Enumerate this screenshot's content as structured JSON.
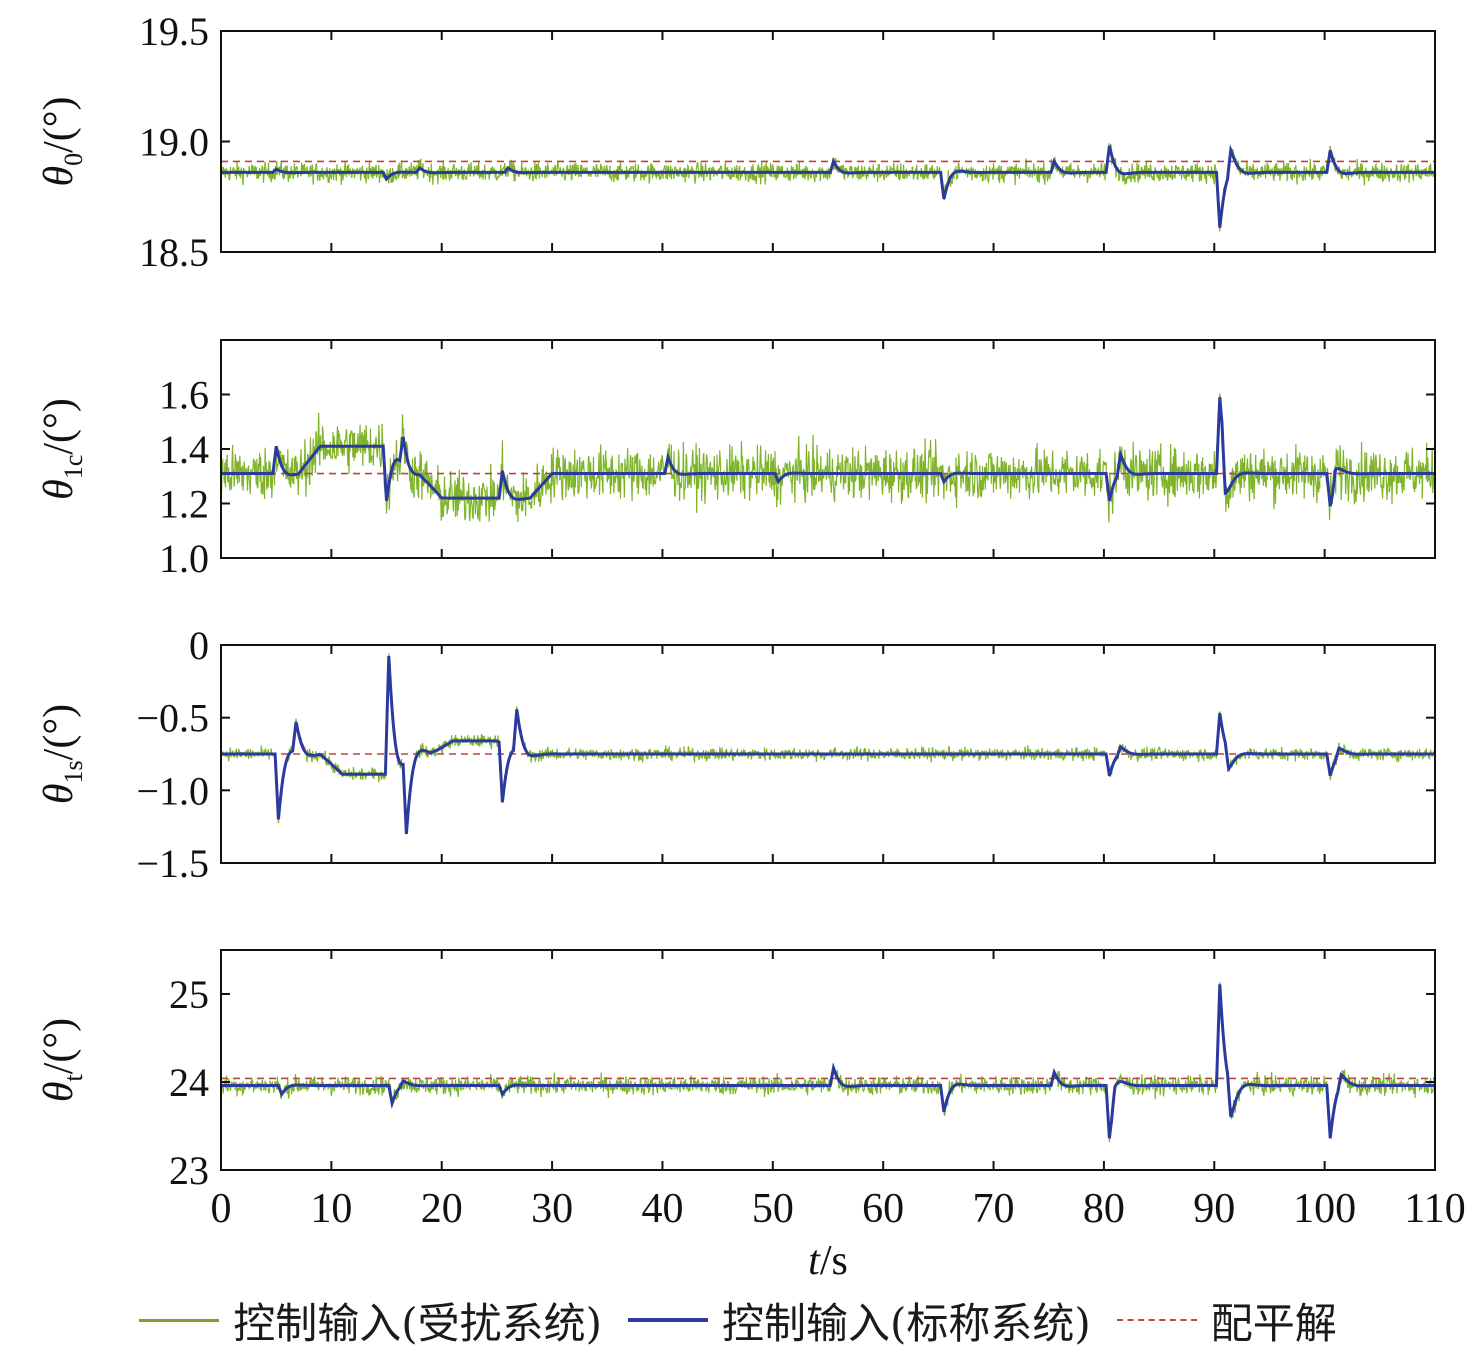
{
  "chart_data": {
    "type": "line",
    "xlabel": "t/s",
    "x_ticks": [
      "0",
      "10",
      "20",
      "30",
      "40",
      "50",
      "60",
      "70",
      "80",
      "90",
      "100",
      "110"
    ],
    "xlim": [
      0,
      110
    ],
    "legend": {
      "placement": "bottom",
      "entries": [
        "控制输入(受扰系统)",
        "控制输入(标称系统)",
        "配平解"
      ]
    },
    "colors": {
      "disturbed": "#7cc42a",
      "disturbed_legend": "#8a9a30",
      "nominal": "#2b3a9e",
      "trim": "#c0453f"
    },
    "grid": false,
    "panels": [
      {
        "ylabel_symbol": "θ",
        "ylabel_sub": "0",
        "ylabel_unit": "/(°)",
        "ylim": [
          18.5,
          19.5
        ],
        "y_ticks": [
          "19.5",
          "19.0",
          "18.5"
        ],
        "y_tick_values": [
          19.5,
          19.0,
          18.5
        ],
        "trim": 18.91,
        "baseline": 18.86,
        "noise_amplitude": 0.05,
        "events": [
          [
            5,
            0.015
          ],
          [
            15,
            -0.03
          ],
          [
            18,
            0.02
          ],
          [
            26,
            0.02
          ],
          [
            55.5,
            0.05
          ],
          [
            65.5,
            -0.12
          ],
          [
            75.5,
            0.05
          ],
          [
            80.5,
            0.12
          ],
          [
            90.5,
            -0.25
          ],
          [
            91.5,
            0.1
          ],
          [
            100.5,
            0.1
          ]
        ]
      },
      {
        "ylabel_symbol": "θ",
        "ylabel_sub": "1c",
        "ylabel_unit": "/(°)",
        "ylim": [
          1.0,
          1.8
        ],
        "y_ticks": [
          "1.6",
          "1.4",
          "1.2",
          "1.0"
        ],
        "y_tick_values": [
          1.6,
          1.4,
          1.2,
          1.0
        ],
        "trim": 1.31,
        "baseline": 1.31,
        "noise_amplitude": 0.11,
        "plateaus": [
          [
            7,
            15,
            1.41
          ],
          [
            18,
            28,
            1.22
          ]
        ],
        "events": [
          [
            5,
            0.1
          ],
          [
            15,
            -0.2
          ],
          [
            16.5,
            0.1
          ],
          [
            25.5,
            0.1
          ],
          [
            40.5,
            0.06
          ],
          [
            50.5,
            -0.03
          ],
          [
            65.5,
            -0.03
          ],
          [
            80.5,
            -0.1
          ],
          [
            81.5,
            0.07
          ],
          [
            90.5,
            0.28
          ],
          [
            91,
            -0.15
          ],
          [
            100.5,
            -0.12
          ],
          [
            101,
            0.05
          ]
        ]
      },
      {
        "ylabel_symbol": "θ",
        "ylabel_sub": "1s",
        "ylabel_unit": "/(°)",
        "ylim": [
          -1.5,
          0.0
        ],
        "y_ticks": [
          "0",
          "−0.5",
          "−1.0",
          "−1.5"
        ],
        "y_tick_values": [
          0,
          -0.5,
          -1.0,
          -1.5
        ],
        "trim": -0.75,
        "baseline": -0.75,
        "noise_amplitude": 0.05,
        "plateaus": [
          [
            9,
            15,
            -0.89
          ],
          [
            19,
            25,
            -0.66
          ]
        ],
        "events": [
          [
            5.2,
            -0.45
          ],
          [
            6.8,
            0.2
          ],
          [
            15.2,
            0.8
          ],
          [
            16.8,
            -0.5
          ],
          [
            25.5,
            -0.4
          ],
          [
            26.8,
            0.28
          ],
          [
            80.5,
            -0.15
          ],
          [
            81.5,
            0.05
          ],
          [
            90.5,
            0.28
          ],
          [
            91.3,
            -0.12
          ],
          [
            100.5,
            -0.15
          ],
          [
            101.3,
            0.05
          ]
        ]
      },
      {
        "ylabel_symbol": "θ",
        "ylabel_sub": "t",
        "ylabel_unit": "/(°)",
        "ylim": [
          23.0,
          25.5
        ],
        "y_ticks": [
          "25",
          "24",
          "23"
        ],
        "y_tick_values": [
          25,
          24,
          23
        ],
        "trim": 24.04,
        "baseline": 23.96,
        "noise_amplitude": 0.12,
        "events": [
          [
            5.5,
            -0.1
          ],
          [
            15.5,
            -0.2
          ],
          [
            16.5,
            0.05
          ],
          [
            25.5,
            -0.1
          ],
          [
            55.5,
            0.2
          ],
          [
            65.5,
            -0.3
          ],
          [
            75.5,
            0.15
          ],
          [
            80.5,
            -0.6
          ],
          [
            81,
            0.15
          ],
          [
            90.5,
            1.15
          ],
          [
            91.5,
            -0.35
          ],
          [
            100.5,
            -0.6
          ],
          [
            101.5,
            0.12
          ]
        ]
      }
    ]
  }
}
